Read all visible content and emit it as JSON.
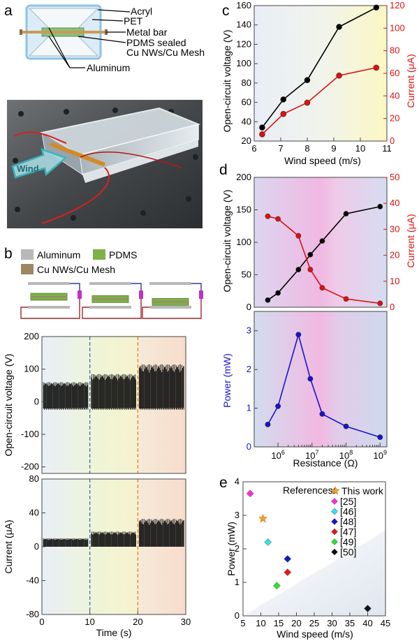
{
  "panel_letters": {
    "a": "a",
    "b": "b",
    "c": "c",
    "d": "d",
    "e": "e"
  },
  "panel_a": {
    "labels": [
      "Acryl",
      "PET",
      "Metal bar",
      "PDMS sealed",
      "Cu NWs/Cu Mesh",
      "Aluminum"
    ],
    "photo_label": "Wind"
  },
  "panel_b": {
    "legend": [
      "Aluminum",
      "PDMS",
      "Cu NWs/Cu Mesh"
    ],
    "colors": {
      "aluminum": "#b8b8b8",
      "pdms": "#7fb04a",
      "cu": "#9c8763"
    }
  },
  "chart_data": [
    {
      "id": "b-voltage",
      "type": "line",
      "ylabel": "Open-circuit voltage (V)",
      "ylim": [
        -220,
        200
      ],
      "yticks": [
        -200,
        -100,
        0,
        100,
        200
      ],
      "xlim": [
        0,
        30
      ],
      "segments": [
        {
          "x": [
            0,
            10
          ],
          "min": -25,
          "max": 60
        },
        {
          "x": [
            10,
            20
          ],
          "min": -25,
          "max": 85
        },
        {
          "x": [
            20,
            30
          ],
          "min": -25,
          "max": 115
        }
      ]
    },
    {
      "id": "b-current",
      "type": "line",
      "xlabel": "Time (s)",
      "ylabel": "Current (μA)",
      "ylim": [
        -80,
        80
      ],
      "yticks": [
        -80,
        -40,
        0,
        40,
        80
      ],
      "xlim": [
        0,
        30
      ],
      "xticks": [
        0,
        10,
        20,
        30
      ],
      "segments": [
        {
          "x": [
            0,
            10
          ],
          "min": 0,
          "max": 10
        },
        {
          "x": [
            10,
            20
          ],
          "min": 0,
          "max": 18
        },
        {
          "x": [
            20,
            30
          ],
          "min": 0,
          "max": 33
        }
      ]
    },
    {
      "id": "c",
      "type": "line",
      "xlabel": "Wind speed  (m/s)",
      "ylabel": "Open-circuit voltage (V)",
      "y2label": "Current (μA)",
      "xlim": [
        6,
        11
      ],
      "xticks": [
        6,
        7,
        8,
        9,
        10,
        11
      ],
      "ylim": [
        20,
        160
      ],
      "yticks": [
        20,
        40,
        60,
        80,
        100,
        120,
        140,
        160
      ],
      "y2lim": [
        0,
        120
      ],
      "y2ticks": [
        0,
        20,
        40,
        60,
        80,
        100,
        120
      ],
      "series": [
        {
          "axis": "left",
          "color": "#000000",
          "x": [
            6.3,
            7.1,
            8.0,
            9.2,
            10.6
          ],
          "y": [
            34,
            63,
            83,
            138,
            158
          ]
        },
        {
          "axis": "right",
          "color": "#e01010",
          "x": [
            6.3,
            7.1,
            8.0,
            9.2,
            10.6
          ],
          "y": [
            6,
            24,
            34,
            58,
            65
          ]
        }
      ]
    },
    {
      "id": "d-top",
      "type": "line",
      "ylabel": "Open-circuit voltage (V)",
      "y2label": "Current (μA)",
      "xscale": "log",
      "xlim": [
        5.3,
        9.2
      ],
      "ylim": [
        0,
        200
      ],
      "yticks": [
        0,
        50,
        100,
        150,
        200
      ],
      "y2lim": [
        0,
        50
      ],
      "y2ticks": [
        0,
        10,
        20,
        30,
        40,
        50
      ],
      "series": [
        {
          "axis": "left",
          "color": "#000000",
          "logx": [
            5.7,
            6.0,
            6.6,
            6.95,
            7.3,
            8.0,
            9.0
          ],
          "y": [
            11,
            22,
            58,
            81,
            102,
            144,
            155
          ]
        },
        {
          "axis": "right",
          "color": "#e01010",
          "logx": [
            5.7,
            6.0,
            6.6,
            6.95,
            7.3,
            8.0,
            9.0
          ],
          "y": [
            35,
            34,
            27.5,
            14.5,
            7.5,
            3.2,
            1.5
          ]
        }
      ]
    },
    {
      "id": "d-bottom",
      "type": "line",
      "xlabel": "Resistance (Ω)",
      "ylabel": "Power  (mW)",
      "xscale": "log",
      "xlim": [
        5.3,
        9.2
      ],
      "xticks": [
        "10^6",
        "10^7",
        "10^8",
        "10^9"
      ],
      "ylim": [
        0,
        3.5
      ],
      "yticks": [
        0,
        1,
        2,
        3
      ],
      "series": [
        {
          "color": "#1515d0",
          "logx": [
            5.7,
            6.0,
            6.6,
            6.95,
            7.3,
            8.0,
            9.0
          ],
          "y": [
            0.58,
            1.05,
            2.9,
            1.76,
            0.85,
            0.53,
            0.25
          ]
        }
      ]
    },
    {
      "id": "e",
      "type": "scatter",
      "xlabel": "Wind speed  (m/s)",
      "ylabel": "Power (mW)",
      "legend_title": "References:",
      "xlim": [
        5,
        45
      ],
      "xticks": [
        5,
        10,
        15,
        20,
        25,
        30,
        35,
        40,
        45
      ],
      "ylim": [
        0,
        4
      ],
      "yticks": [
        0,
        1,
        2,
        3,
        4
      ],
      "series": [
        {
          "name": "This work",
          "marker": "star",
          "color": "#f0a030",
          "x": 10.6,
          "y": 2.9
        },
        {
          "name": "[25]",
          "marker": "diamond",
          "color": "#ff2cd8",
          "x": 7.0,
          "y": 3.65
        },
        {
          "name": "[46]",
          "marker": "diamond",
          "color": "#30e0ee",
          "x": 12.0,
          "y": 2.2
        },
        {
          "name": "[48]",
          "marker": "diamond",
          "color": "#1515d0",
          "x": 17.5,
          "y": 1.7
        },
        {
          "name": "[47]",
          "marker": "diamond",
          "color": "#e81818",
          "x": 17.5,
          "y": 1.3
        },
        {
          "name": "[49]",
          "marker": "diamond",
          "color": "#30e030",
          "x": 14.5,
          "y": 0.9
        },
        {
          "name": "[50]",
          "marker": "diamond",
          "color": "#111111",
          "x": 40.0,
          "y": 0.22
        }
      ]
    }
  ]
}
